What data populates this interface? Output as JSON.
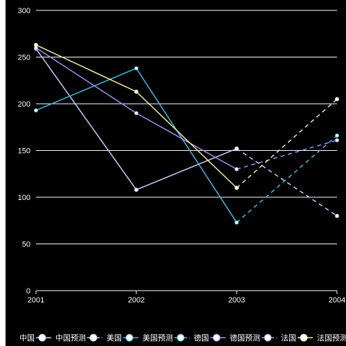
{
  "chart_data": {
    "type": "line",
    "x": [
      "2001",
      "2002",
      "2003",
      "2004"
    ],
    "ylim": [
      0,
      300
    ],
    "yticks": [
      0,
      50,
      100,
      150,
      200,
      250,
      300
    ],
    "grid": "horizontal",
    "legend_position": "bottom",
    "series": [
      {
        "name": "中国",
        "color": "#c0d4ff",
        "dashed": false,
        "values": [
          259,
          108,
          152,
          null
        ]
      },
      {
        "name": "中国预测",
        "color": "#c0d4ff",
        "dashed": true,
        "values": [
          null,
          null,
          152,
          80
        ]
      },
      {
        "name": "美国",
        "color": "#3bbfe6",
        "dashed": false,
        "values": [
          193,
          238,
          73,
          null
        ]
      },
      {
        "name": "美国预测",
        "color": "#3bbfe6",
        "dashed": true,
        "values": [
          null,
          null,
          73,
          166
        ]
      },
      {
        "name": "德国",
        "color": "#a98cf5",
        "dashed": false,
        "values": [
          260,
          190,
          130,
          null
        ]
      },
      {
        "name": "德国预测",
        "color": "#a98cf5",
        "dashed": true,
        "values": [
          null,
          null,
          130,
          161
        ]
      },
      {
        "name": "法国",
        "color": "#f5ec9e",
        "dashed": false,
        "values": [
          263,
          213,
          110,
          null
        ]
      },
      {
        "name": "法国预测",
        "color": "#f5ec9e",
        "dashed": true,
        "values": [
          null,
          null,
          110,
          205
        ]
      }
    ]
  }
}
